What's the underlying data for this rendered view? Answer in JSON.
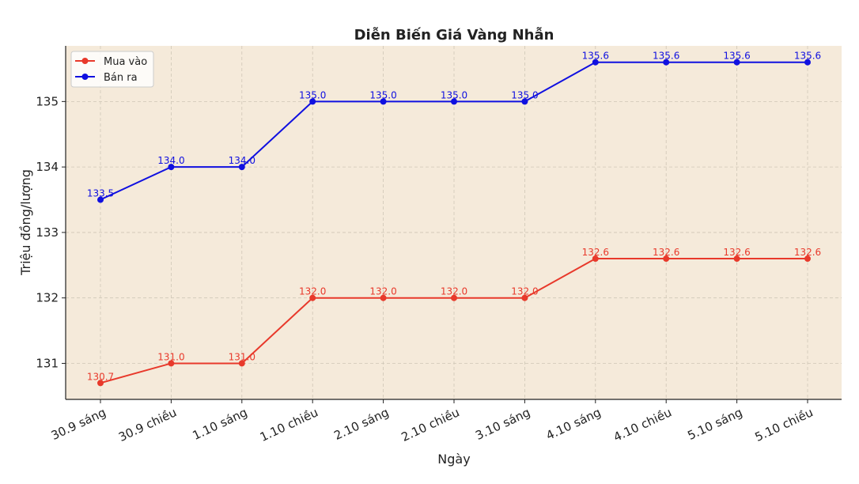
{
  "chart_data": {
    "type": "line",
    "title": "Diễn Biến Giá Vàng Nhẫn",
    "xlabel": "Ngày",
    "ylabel": "Triệu đồng/lượng",
    "categories": [
      "30.9 sáng",
      "30.9 chiều",
      "1.10 sáng",
      "1.10 chiều",
      "2.10 sáng",
      "2.10 chiều",
      "3.10 sáng",
      "4.10 sáng",
      "4.10 chiều",
      "5.10 sáng",
      "5.10 chiều"
    ],
    "ylim": [
      130.45,
      135.85
    ],
    "yticks": [
      131,
      132,
      133,
      134,
      135
    ],
    "grid": true,
    "legend_position": "top-left",
    "series": [
      {
        "name": "Mua vào",
        "color": "#e8392b",
        "values": [
          130.7,
          131.0,
          131.0,
          132.0,
          132.0,
          132.0,
          132.0,
          132.6,
          132.6,
          132.6,
          132.6
        ]
      },
      {
        "name": "Bán ra",
        "color": "#1010e0",
        "values": [
          133.5,
          134.0,
          134.0,
          135.0,
          135.0,
          135.0,
          135.0,
          135.6,
          135.6,
          135.6,
          135.6
        ]
      }
    ],
    "background": "#f5eada"
  }
}
